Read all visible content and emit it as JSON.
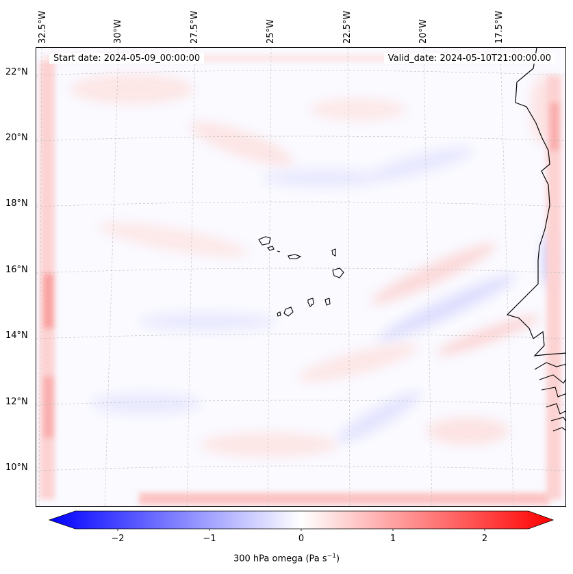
{
  "map": {
    "header": {
      "start_date": "Start date: 2024-05-09_00:00:00",
      "valid_date": "Valid_date: 2024-05-10T21:00:00.00"
    },
    "longitude_labels": [
      "32.5°W",
      "30°W",
      "27.5°W",
      "25°W",
      "22.5°W",
      "20°W",
      "17.5°W"
    ],
    "latitude_labels": [
      "22°N",
      "20°N",
      "18°N",
      "16°N",
      "14°N",
      "12°N",
      "10°N"
    ],
    "variable": "300 hPa omega",
    "colorbar": {
      "label_prefix": "300 hPa omega (Pa s",
      "label_exp": "−1",
      "label_suffix": ")",
      "ticks": [
        "−2",
        "−1",
        "0",
        "1",
        "2"
      ],
      "tick_values": [
        -2,
        -1,
        0,
        1,
        2
      ],
      "range": [
        -2.5,
        2.5
      ],
      "colormap": "bwr",
      "color_low": "#0000ff",
      "color_mid": "#ffffff",
      "color_high": "#ff0000"
    },
    "coastline_color": "#000000"
  }
}
